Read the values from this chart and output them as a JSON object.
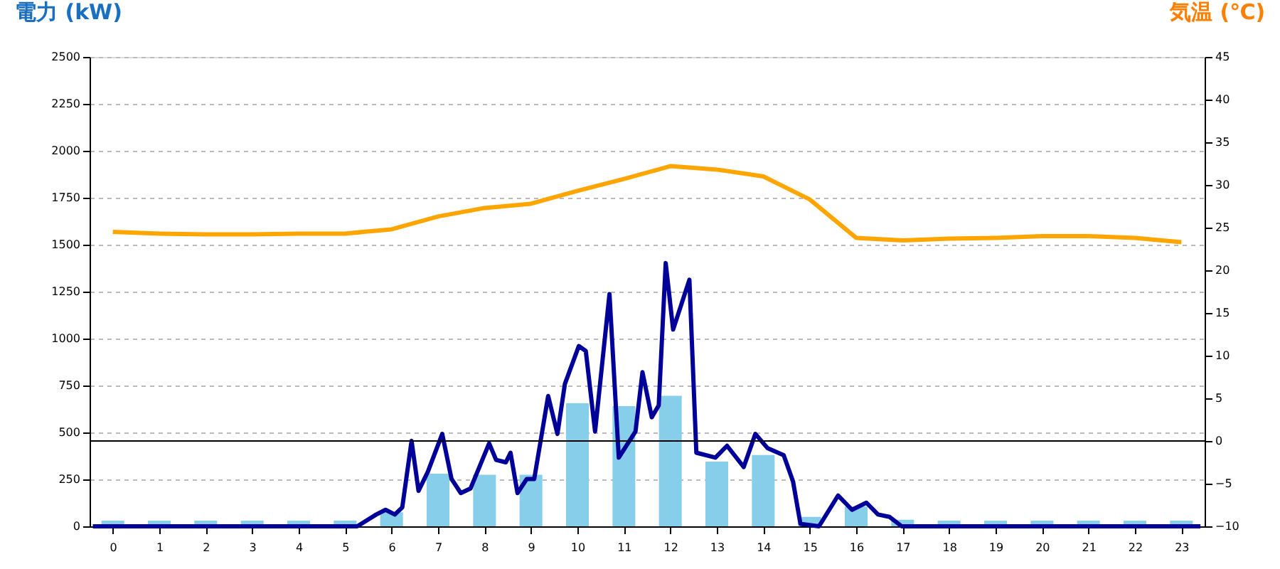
{
  "chart_data": {
    "type": "bar",
    "ylabel": "電力 (kW)",
    "y2label": "気温 (℃)",
    "xlim": [
      -0.5,
      23.5
    ],
    "xticks": [
      0,
      1,
      2,
      3,
      4,
      5,
      6,
      7,
      8,
      9,
      10,
      11,
      12,
      13,
      14,
      15,
      16,
      17,
      18,
      19,
      20,
      21,
      22,
      23
    ],
    "ylim": [
      0,
      2500
    ],
    "yticks": [
      0,
      250,
      500,
      750,
      1000,
      1250,
      1500,
      1750,
      2000,
      2250,
      2500
    ],
    "y2lim": [
      -10,
      45
    ],
    "y2ticks": [
      -10,
      -5,
      0,
      5,
      10,
      15,
      20,
      25,
      30,
      35,
      40,
      45
    ],
    "grid": "y",
    "line_style": "solid",
    "marker": "none",
    "ref_lines": [
      {
        "axis": "y2",
        "value": 0,
        "color": "#000000"
      }
    ],
    "series": [
      {
        "color": "#87ceeb",
        "x": [
          0,
          1,
          2,
          3,
          4,
          5,
          6,
          7,
          8,
          9,
          10,
          11,
          12,
          13,
          14,
          15,
          16,
          17,
          18,
          19,
          20,
          21,
          22,
          23
        ],
        "values": [
          30,
          30,
          30,
          30,
          30,
          30,
          75,
          280,
          275,
          275,
          655,
          640,
          695,
          345,
          380,
          50,
          105,
          35,
          30,
          30,
          30,
          30,
          30,
          30
        ]
      },
      {
        "type": "line",
        "color": "#000099",
        "x": [
          -0.43,
          4.65,
          5.26,
          5.67,
          5.87,
          6.07,
          6.23,
          6.43,
          6.58,
          6.78,
          7.09,
          7.29,
          7.49,
          7.7,
          8.1,
          8.25,
          8.46,
          8.56,
          8.71,
          8.91,
          9.07,
          9.37,
          9.57,
          9.73,
          10.03,
          10.18,
          10.38,
          10.69,
          10.89,
          11.25,
          11.4,
          11.6,
          11.75,
          11.9,
          12.06,
          12.41,
          12.56,
          12.97,
          13.22,
          13.58,
          13.83,
          14.09,
          14.44,
          14.64,
          14.8,
          15.2,
          15.61,
          15.91,
          16.22,
          16.47,
          16.72,
          16.98,
          23.41
        ],
        "values": [
          0,
          0,
          0,
          63,
          88,
          63,
          101,
          455,
          189,
          290,
          492,
          252,
          177,
          202,
          442,
          354,
          341,
          392,
          177,
          252,
          252,
          694,
          492,
          758,
          960,
          934,
          505,
          1237,
          366,
          505,
          821,
          581,
          644,
          1402,
          1048,
          1313,
          392,
          366,
          429,
          316,
          492,
          417,
          379,
          240,
          13,
          0,
          164,
          88,
          126,
          63,
          50,
          0,
          0
        ]
      },
      {
        "type": "line",
        "color": "#ffa500",
        "axis": "y2",
        "x": [
          0,
          1,
          2,
          3,
          4,
          5,
          6,
          7,
          8,
          9,
          10,
          11,
          12,
          13,
          14,
          15,
          16,
          17,
          18,
          19,
          20,
          21,
          22,
          23
        ],
        "values": [
          24.5,
          24.3,
          24.2,
          24.2,
          24.3,
          24.3,
          24.8,
          26.3,
          27.3,
          27.8,
          29.3,
          30.7,
          32.2,
          31.8,
          31,
          28.3,
          23.8,
          23.5,
          23.7,
          23.8,
          24,
          24,
          23.8,
          23.3
        ]
      }
    ]
  }
}
